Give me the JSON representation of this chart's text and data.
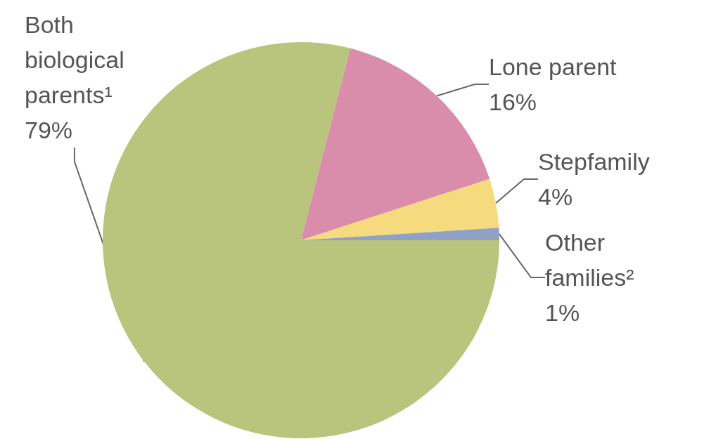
{
  "chart_data": {
    "type": "pie",
    "categories": [
      "Both\nbiological\nparents¹",
      "Lone parent",
      "Stepfamily",
      "Other\nfamilies²"
    ],
    "values": [
      79,
      16,
      4,
      1
    ],
    "value_labels": [
      "79%",
      "16%",
      "4%",
      "1%"
    ],
    "colors": [
      "#b9c47c",
      "#d98dab",
      "#f6da7e",
      "#8fa2c6"
    ],
    "legend": false
  }
}
